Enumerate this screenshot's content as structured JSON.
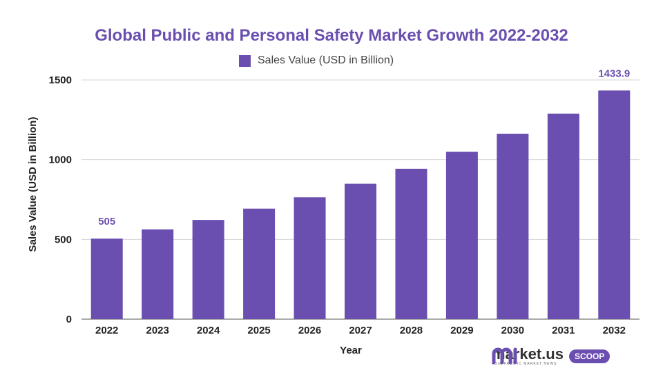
{
  "chart_data": {
    "type": "bar",
    "title": "Global Public and Personal Safety Market Growth 2022-2032",
    "xlabel": "Year",
    "ylabel": "Sales Value (USD in Billion)",
    "categories": [
      "2022",
      "2023",
      "2024",
      "2025",
      "2026",
      "2027",
      "2028",
      "2029",
      "2030",
      "2031",
      "2032"
    ],
    "series": [
      {
        "name": "Sales Value (USD in Billion)",
        "values": [
          505,
          563,
          622,
          693,
          764,
          849,
          943,
          1050,
          1163,
          1289,
          1433.9
        ]
      }
    ],
    "data_labels": [
      "505",
      "",
      "",
      "",
      "",
      "",
      "",
      "",
      "",
      "",
      "1433.9"
    ],
    "yticks": [
      0,
      500,
      1000,
      1500
    ],
    "ylim": [
      0,
      1500
    ],
    "grid": true,
    "legend_position": "top-center",
    "colors": {
      "bar": "#6a4fb0",
      "title": "#6a4fb0",
      "grid": "#d4d4d4"
    }
  },
  "branding": {
    "name": "market.us",
    "tagline": "ASIA PACIFIC MARKET NEWS",
    "badge": "SCOOP"
  }
}
